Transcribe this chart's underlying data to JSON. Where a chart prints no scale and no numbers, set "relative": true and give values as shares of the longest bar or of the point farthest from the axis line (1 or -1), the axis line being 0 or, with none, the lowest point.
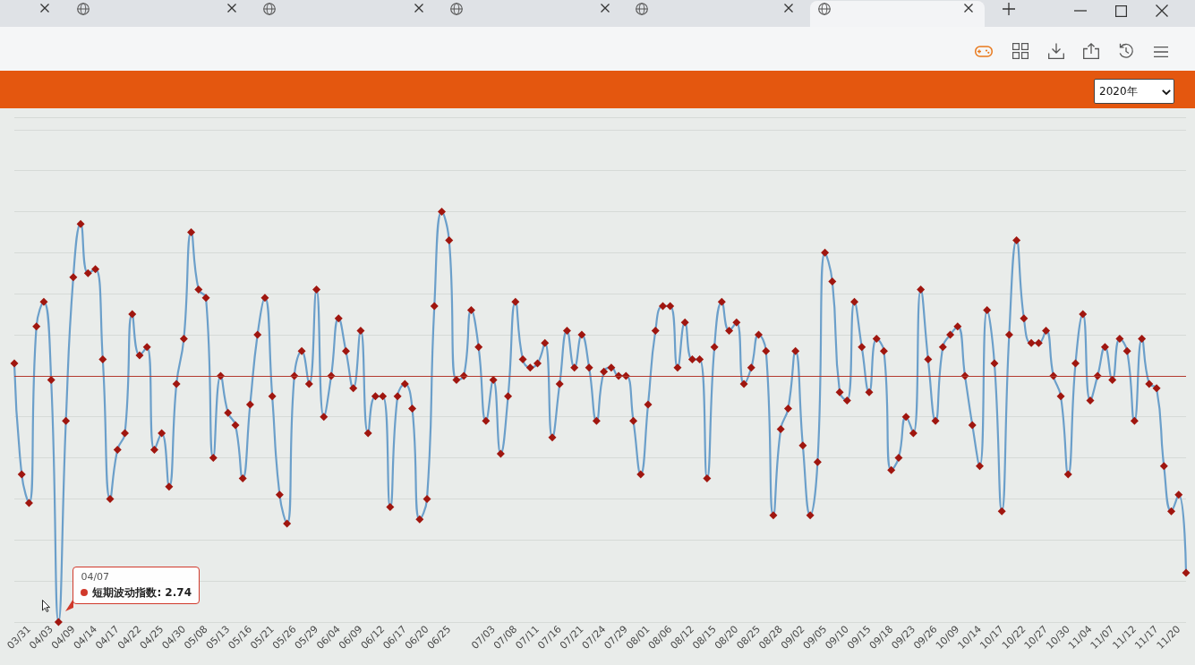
{
  "chart_data": {
    "type": "line",
    "relative": true,
    "categories": [
      null,
      null,
      "03/31",
      null,
      null,
      "04/03",
      null,
      null,
      "04/09",
      null,
      null,
      "04/14",
      null,
      null,
      "04/17",
      null,
      null,
      "04/22",
      null,
      null,
      "04/25",
      null,
      null,
      "04/30",
      null,
      null,
      "05/08",
      null,
      null,
      "05/13",
      null,
      null,
      "05/16",
      null,
      null,
      "05/21",
      null,
      null,
      "05/26",
      null,
      null,
      "05/29",
      null,
      null,
      "06/04",
      null,
      null,
      "06/09",
      null,
      null,
      "06/12",
      null,
      null,
      "06/17",
      null,
      null,
      "06/20",
      null,
      null,
      "06/25",
      null,
      null,
      null,
      null,
      null,
      "07/03",
      null,
      null,
      "07/08",
      null,
      null,
      "07/11",
      null,
      null,
      "07/16",
      null,
      null,
      "07/21",
      null,
      null,
      "07/24",
      null,
      null,
      "07/29",
      null,
      null,
      "08/01",
      null,
      null,
      "08/06",
      null,
      null,
      "08/12",
      null,
      null,
      "08/15",
      null,
      null,
      "08/20",
      null,
      null,
      "08/25",
      null,
      null,
      "08/28",
      null,
      null,
      "09/02",
      null,
      null,
      "09/05",
      null,
      null,
      "09/10",
      null,
      null,
      "09/15",
      null,
      null,
      "09/18",
      null,
      null,
      "09/23",
      null,
      null,
      "09/26",
      null,
      null,
      "10/09",
      null,
      null,
      "10/14",
      null,
      null,
      "10/17",
      null,
      null,
      "10/22",
      null,
      null,
      "10/27",
      null,
      null,
      "10/30",
      null,
      null,
      "11/04",
      null,
      null,
      "11/07",
      null,
      null,
      "11/12",
      null,
      null,
      "11/17",
      null,
      null,
      "11/20",
      null
    ],
    "series": [
      {
        "color": "#6b9fca",
        "values": [
          0.63,
          0.36,
          0.29,
          0.72,
          0.78,
          0.59,
          0,
          0.49,
          0.84,
          0.97,
          0.85,
          0.86,
          0.64,
          0.3,
          0.42,
          0.46,
          0.75,
          0.65,
          0.67,
          0.42,
          0.46,
          0.33,
          0.58,
          0.69,
          0.95,
          0.81,
          0.79,
          0.4,
          0.6,
          0.51,
          0.48,
          0.35,
          0.53,
          0.7,
          0.79,
          0.55,
          0.31,
          0.24,
          0.6,
          0.66,
          0.58,
          0.81,
          0.5,
          0.6,
          0.74,
          0.66,
          0.57,
          0.71,
          0.46,
          0.55,
          0.55,
          0.28,
          0.55,
          0.58,
          0.52,
          0.25,
          0.3,
          0.77,
          1,
          0.93,
          0.59,
          0.6,
          0.76,
          0.67,
          0.49,
          0.59,
          0.41,
          0.55,
          0.78,
          0.64,
          0.62,
          0.63,
          0.68,
          0.45,
          0.58,
          0.71,
          0.62,
          0.7,
          0.62,
          0.49,
          0.61,
          0.62,
          0.6,
          0.6,
          0.49,
          0.36,
          0.53,
          0.71,
          0.77,
          0.77,
          0.62,
          0.73,
          0.64,
          0.64,
          0.35,
          0.67,
          0.78,
          0.71,
          0.73,
          0.58,
          0.62,
          0.7,
          0.66,
          0.26,
          0.47,
          0.52,
          0.66,
          0.43,
          0.26,
          0.39,
          0.9,
          0.83,
          0.56,
          0.54,
          0.78,
          0.67,
          0.56,
          0.69,
          0.66,
          0.37,
          0.4,
          0.5,
          0.46,
          0.81,
          0.64,
          0.49,
          0.67,
          0.7,
          0.72,
          0.6,
          0.48,
          0.38,
          0.76,
          0.63,
          0.27,
          0.7,
          0.93,
          0.74,
          0.68,
          0.68,
          0.71,
          0.6,
          0.55,
          0.36,
          0.63,
          0.75,
          0.54,
          0.6,
          0.67,
          0.59,
          0.69,
          0.66,
          0.49,
          0.69,
          0.58,
          0.57,
          0.38,
          0.27,
          0.31,
          0.12
        ],
        "colors": [
          "#a0160f",
          "#a0160f",
          "#a0160f",
          "#a0160f",
          "#a0160f",
          "#a0160f",
          "#a0160f",
          "#a0160f",
          "#a0160f",
          "#a0160f",
          "#a0160f",
          "#a0160f",
          "#a0160f",
          "#a0160f",
          "#a0160f",
          "#a0160f",
          "#a0160f",
          "#a0160f",
          "#a0160f",
          "#a0160f",
          "#a0160f",
          "#a0160f",
          "#a0160f",
          "#a0160f",
          "#a0160f",
          "#a0160f",
          "#a0160f",
          "#a0160f",
          "#a0160f",
          "#a0160f",
          "#a0160f",
          "#a0160f",
          "#a0160f",
          "#a0160f",
          "#a0160f",
          "#a0160f",
          "#a0160f",
          "#a0160f",
          "#a0160f",
          "#a0160f",
          "#a0160f",
          "#a0160f",
          "#a0160f",
          "#a0160f",
          "#a0160f",
          "#a0160f",
          "#a0160f",
          "#a0160f",
          "#a0160f",
          "#a0160f",
          "#a0160f",
          "#a0160f",
          "#a0160f",
          "#a0160f",
          "#a0160f",
          "#a0160f",
          "#a0160f",
          "#a0160f",
          "#a0160f",
          "#a0160f",
          "#a0160f",
          "#a0160f",
          "#a0160f",
          "#a0160f",
          "#a0160f",
          "#a0160f",
          "#a0160f",
          "#a0160f",
          "#a0160f",
          "#a0160f",
          "#a0160f",
          "#a0160f",
          "#a0160f",
          "#a0160f",
          "#a0160f",
          "#a0160f",
          "#a0160f",
          "#a0160f",
          "#a0160f",
          "#a0160f",
          "#a0160f",
          "#a0160f",
          "#a0160f",
          "#a0160f",
          "#a0160f",
          "#a0160f",
          "#a0160f",
          "#a0160f",
          "#a0160f",
          "#a0160f",
          "#a0160f",
          "#a0160f",
          "#a0160f",
          "#a0160f",
          "#a0160f",
          "#a0160f",
          "#a0160f",
          "#a0160f",
          "#a0160f",
          "#a0160f",
          "#a0160f",
          "#a0160f",
          "#a0160f",
          "#a0160f",
          "#a0160f",
          "#a0160f",
          "#a0160f",
          "#a0160f",
          "#a0160f",
          "#a0160f",
          "#a0160f",
          "#a0160f",
          "#a0160f",
          "#a0160f",
          "#a0160f",
          "#a0160f",
          "#a0160f",
          "#a0160f",
          "#a0160f",
          "#a0160f",
          "#a0160f",
          "#a0160f",
          "#a0160f",
          "#a0160f",
          "#a0160f",
          "#a0160f",
          "#a0160f",
          "#a0160f",
          "#a0160f",
          "#a0160f",
          "#a0160f",
          "#a0160f",
          "#a0160f",
          "#a0160f",
          "#a0160f",
          "#a0160f",
          "#a0160f",
          "#a0160f",
          "#a0160f",
          "#a0160f",
          "#a0160f",
          "#a0160f",
          "#a0160f",
          "#a0160f",
          "#a0160f",
          "#a0160f",
          "#a0160f",
          "#a0160f",
          "#a0160f",
          "#a0160f",
          "#a0160f",
          "#a0160f",
          "#a0160f",
          "#a0160f",
          "#a0160f",
          "#a0160f",
          "#a0160f",
          "#a0160f",
          "#a0160f",
          "#a0160f"
        ]
      }
    ],
    "marker": "diamond",
    "line_style": "solid",
    "grid": "y",
    "ref_lines": [
      {
        "axis": "y",
        "value": 0.6,
        "color": "#b33a2e"
      }
    ],
    "annotations": [
      "2020年",
      "04/07",
      "短期波动指数: 2.74"
    ]
  }
}
